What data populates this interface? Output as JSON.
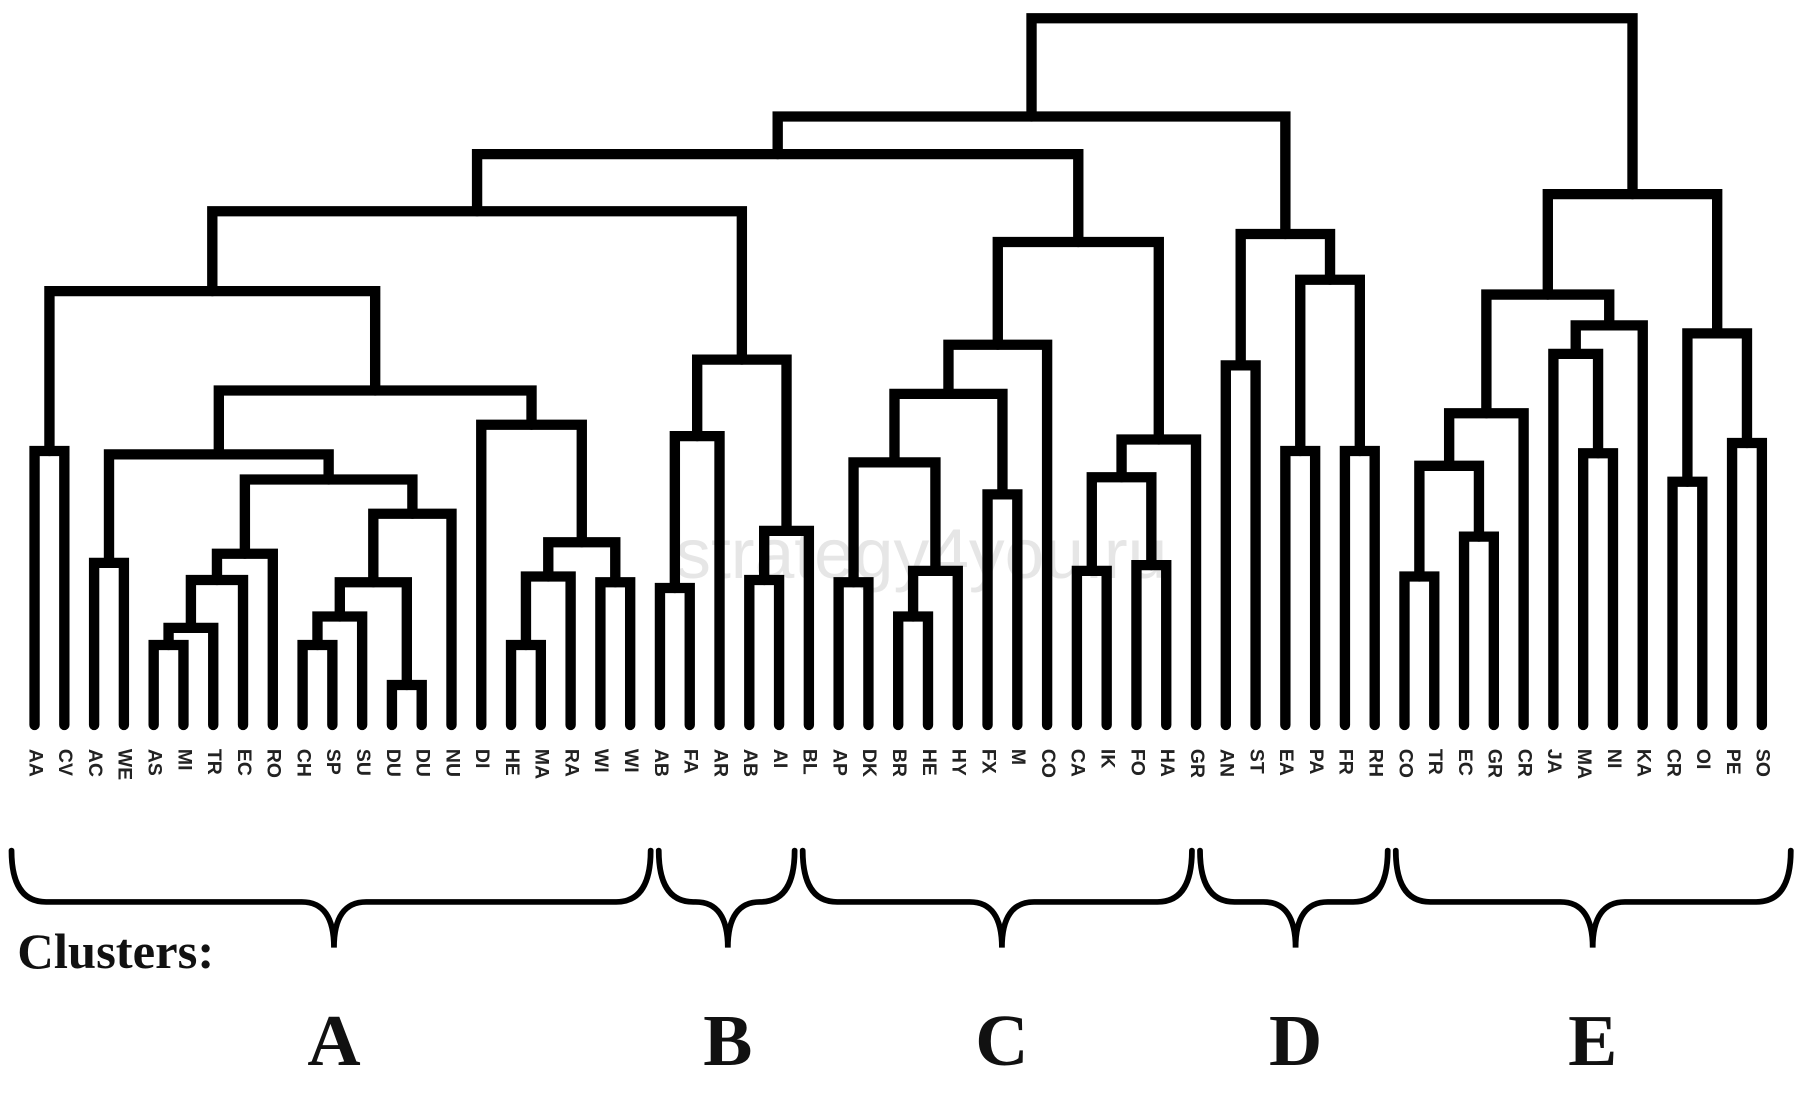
{
  "leaves": [
    "AA",
    "CV",
    "AC",
    "WE",
    "AS",
    "MI",
    "TR",
    "EC",
    "RO",
    "CH",
    "SP",
    "SU",
    "DU",
    "DU",
    "NU",
    "DI",
    "HE",
    "MA",
    "RA",
    "WI",
    "WI",
    "AB",
    "FA",
    "AR",
    "AB",
    "AI",
    "BL",
    "AP",
    "DK",
    "BR",
    "HE",
    "HY",
    "FX",
    "M",
    "CO",
    "CA",
    "IK",
    "FO",
    "HA",
    "GR",
    "AN",
    "ST",
    "EA",
    "PA",
    "FR",
    "RH",
    "CO",
    "TR",
    "EC",
    "GR",
    "CR",
    "JA",
    "MA",
    "NI",
    "KA",
    "CR",
    "OI",
    "PE",
    "SO"
  ],
  "clusters_label": "Clusters:",
  "clusters": [
    "A",
    "B",
    "C",
    "D",
    "E"
  ],
  "watermark": "strategy4you.ru"
}
